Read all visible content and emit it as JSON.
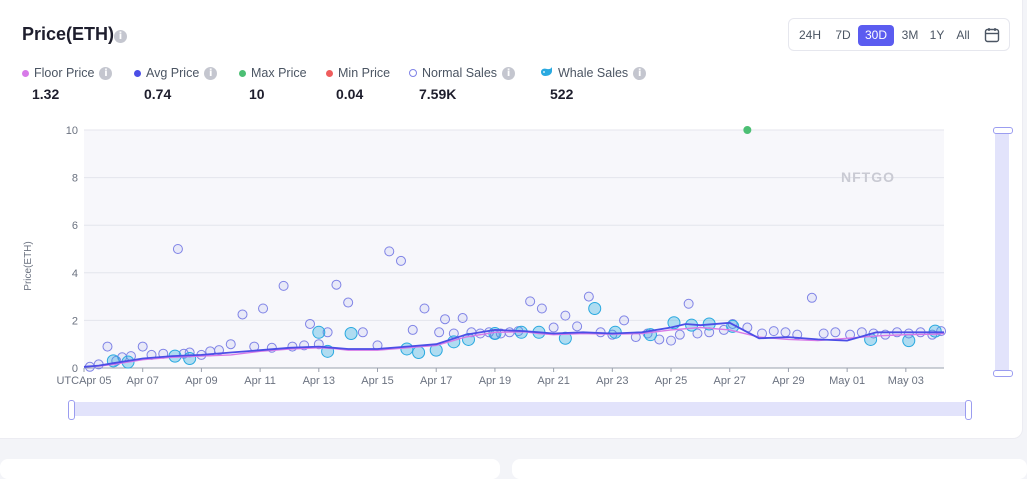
{
  "header": {
    "title": "Price(ETH)"
  },
  "time_range": {
    "options": [
      "24H",
      "7D",
      "30D",
      "3M",
      "1Y",
      "All"
    ],
    "active": "30D"
  },
  "stats": [
    {
      "label": "Floor Price",
      "value": "1.32",
      "color": "#d77ae8",
      "marker": "dot"
    },
    {
      "label": "Avg Price",
      "value": "0.74",
      "color": "#4b4ee6",
      "marker": "dot"
    },
    {
      "label": "Max Price",
      "value": "10",
      "color": "#4cbf74",
      "marker": "dot"
    },
    {
      "label": "Min Price",
      "value": "0.04",
      "color": "#ef5d5d",
      "marker": "dot"
    },
    {
      "label": "Normal Sales",
      "value": "7.59K",
      "color": "#7f83e6",
      "marker": "ring"
    },
    {
      "label": "Whale Sales",
      "value": "522",
      "color": "#29a9e0",
      "marker": "whale"
    }
  ],
  "watermark": "NFTGO",
  "colors": {
    "accent": "#5b5cf0",
    "floor": "#d77ae8",
    "avg": "#4b4ee6",
    "max": "#4cbf74",
    "normal": "#7f83e6",
    "whale": "#29a9e0",
    "slider": "#e2e3fb"
  },
  "chart_data": {
    "type": "scatter",
    "title": "",
    "ylabel": "Price(ETH)",
    "xlabel": "",
    "ylim": [
      0,
      10
    ],
    "yticks": [
      "0",
      "2",
      "4",
      "6",
      "8",
      "10"
    ],
    "xticks": [
      "UTCApr 05",
      "Apr 07",
      "Apr 09",
      "Apr 11",
      "Apr 13",
      "Apr 15",
      "Apr 17",
      "Apr 19",
      "Apr 21",
      "Apr 23",
      "Apr 25",
      "Apr 27",
      "Apr 29",
      "May 01",
      "May 03"
    ],
    "grid": true,
    "series": [
      {
        "name": "Floor Price",
        "type": "line",
        "color": "#d77ae8",
        "x": [
          0,
          0.5,
          1,
          1.5,
          2,
          3,
          4,
          5,
          6,
          7,
          8,
          8.5,
          9,
          10,
          11,
          12,
          13,
          14,
          15,
          15.5,
          16,
          17,
          18,
          19,
          20,
          21,
          22,
          23,
          24,
          25,
          26,
          27,
          28,
          29,
          29.3
        ],
        "y": [
          0.05,
          0.08,
          0.15,
          0.25,
          0.35,
          0.45,
          0.5,
          0.55,
          0.7,
          0.8,
          0.85,
          0.82,
          0.75,
          0.75,
          0.85,
          0.95,
          1.3,
          1.5,
          1.52,
          1.45,
          1.4,
          1.45,
          1.42,
          1.45,
          1.6,
          1.7,
          1.6,
          1.3,
          1.2,
          1.15,
          1.25,
          1.35,
          1.4,
          1.42,
          1.45
        ]
      },
      {
        "name": "Avg Price",
        "type": "line",
        "color": "#4b4ee6",
        "x": [
          0,
          0.5,
          1,
          1.5,
          2,
          3,
          4,
          5,
          6,
          7,
          8,
          8.5,
          9,
          10,
          11,
          12,
          13,
          14,
          15,
          15.5,
          16,
          17,
          18,
          19,
          20,
          20.5,
          21,
          22,
          23,
          24,
          25,
          26,
          27,
          28,
          29,
          29.3
        ],
        "y": [
          0.05,
          0.1,
          0.2,
          0.3,
          0.4,
          0.5,
          0.55,
          0.65,
          0.75,
          0.85,
          0.9,
          0.85,
          0.8,
          0.8,
          0.9,
          1.0,
          1.4,
          1.6,
          1.55,
          1.5,
          1.45,
          1.5,
          1.45,
          1.5,
          1.7,
          1.85,
          1.8,
          1.9,
          1.25,
          1.3,
          1.2,
          1.15,
          1.5,
          1.5,
          1.5,
          1.5
        ]
      },
      {
        "name": "Max Price",
        "type": "scatter",
        "color": "#4cbf74",
        "x": [
          22.6
        ],
        "y": [
          10
        ]
      },
      {
        "name": "Normal Sales",
        "type": "scatter",
        "color": "#7f83e6",
        "x": [
          0.2,
          0.5,
          0.8,
          1.1,
          1.3,
          1.6,
          2.0,
          2.3,
          2.7,
          3.2,
          3.4,
          3.6,
          4.0,
          4.3,
          4.6,
          5.0,
          5.4,
          5.8,
          6.1,
          6.4,
          6.8,
          7.1,
          7.5,
          7.7,
          8.0,
          8.3,
          8.6,
          9.0,
          9.5,
          10.0,
          10.4,
          10.8,
          11.2,
          11.6,
          12.1,
          12.3,
          12.6,
          12.9,
          13.2,
          13.5,
          13.8,
          14.0,
          14.2,
          14.5,
          14.8,
          15.2,
          15.6,
          16.0,
          16.4,
          16.8,
          17.2,
          17.6,
          18.0,
          18.4,
          18.8,
          19.2,
          19.6,
          20.0,
          20.3,
          20.6,
          20.9,
          21.3,
          21.8,
          22.1,
          22.6,
          23.1,
          23.5,
          23.9,
          24.3,
          24.8,
          25.2,
          25.6,
          26.1,
          26.5,
          26.9,
          27.3,
          27.7,
          28.1,
          28.5,
          28.9,
          29.2
        ],
        "y": [
          0.05,
          0.15,
          0.9,
          0.3,
          0.45,
          0.5,
          0.9,
          0.55,
          0.6,
          5.0,
          0.6,
          0.65,
          0.55,
          0.7,
          0.75,
          1.0,
          2.25,
          0.9,
          2.5,
          0.85,
          3.45,
          0.9,
          0.95,
          1.85,
          1.0,
          1.5,
          3.5,
          2.75,
          1.5,
          0.95,
          4.9,
          4.5,
          1.6,
          2.5,
          1.5,
          2.05,
          1.45,
          2.1,
          1.5,
          1.45,
          1.5,
          1.4,
          1.45,
          1.5,
          1.55,
          2.8,
          2.5,
          1.7,
          2.2,
          1.75,
          3.0,
          1.5,
          1.4,
          2.0,
          1.3,
          1.45,
          1.2,
          1.15,
          1.4,
          2.7,
          1.45,
          1.5,
          1.6,
          1.85,
          1.7,
          1.45,
          1.55,
          1.5,
          1.4,
          2.95,
          1.45,
          1.5,
          1.4,
          1.5,
          1.45,
          1.4,
          1.5,
          1.45,
          1.5,
          1.4,
          1.55
        ]
      },
      {
        "name": "Whale Sales",
        "type": "scatter",
        "color": "#29a9e0",
        "x": [
          1.0,
          1.5,
          3.1,
          3.6,
          8.0,
          8.3,
          9.1,
          11.0,
          11.4,
          12.0,
          12.6,
          13.1,
          14.0,
          14.9,
          15.5,
          16.4,
          17.4,
          18.1,
          19.3,
          20.1,
          20.7,
          21.3,
          22.1,
          26.8,
          28.1,
          29.0
        ],
        "y": [
          0.3,
          0.25,
          0.5,
          0.4,
          1.5,
          0.7,
          1.45,
          0.8,
          0.65,
          0.75,
          1.1,
          1.2,
          1.45,
          1.5,
          1.5,
          1.25,
          2.5,
          1.5,
          1.4,
          1.9,
          1.8,
          1.85,
          1.75,
          1.2,
          1.15,
          1.55
        ]
      }
    ]
  }
}
